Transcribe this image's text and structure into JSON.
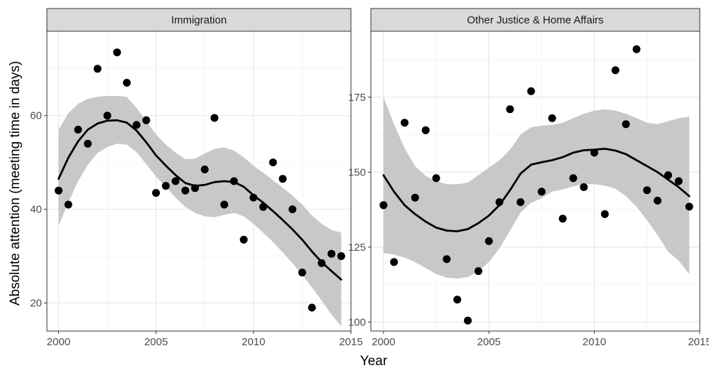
{
  "chart_data": {
    "type": "scatter",
    "facet_strips": true,
    "xlabel": "Year",
    "ylabel": "Absolute attention (meeting time in days)",
    "grid": true,
    "style": {
      "panel_background": "#ffffff",
      "panel_border": "#333333",
      "strip_fill": "#d9d9d9",
      "grid_major": "#e8e8e8",
      "grid_minor": "#f4f4f4",
      "point_color": "#000000",
      "band_color": "#c8c8c8",
      "line_color": "#000000"
    },
    "panels": [
      {
        "strip": "Immigration",
        "xlim": [
          1999.4,
          2015.0
        ],
        "ylim": [
          14.0,
          78.0
        ],
        "x_ticks": [
          2000,
          2005,
          2010,
          2015
        ],
        "x_tick_labels": [
          "2000",
          "2005",
          "2010",
          "2015"
        ],
        "y_ticks": [
          20,
          40,
          60
        ],
        "y_tick_labels": [
          "20",
          "40",
          "60"
        ],
        "points": [
          [
            2000.0,
            44.0
          ],
          [
            2000.5,
            41.0
          ],
          [
            2001.0,
            57.0
          ],
          [
            2001.5,
            54.0
          ],
          [
            2002.0,
            70.0
          ],
          [
            2002.5,
            60.0
          ],
          [
            2003.0,
            73.5
          ],
          [
            2003.5,
            67.0
          ],
          [
            2004.0,
            58.0
          ],
          [
            2004.5,
            59.0
          ],
          [
            2005.0,
            43.5
          ],
          [
            2005.5,
            45.0
          ],
          [
            2006.0,
            46.0
          ],
          [
            2006.5,
            44.0
          ],
          [
            2007.0,
            44.5
          ],
          [
            2007.5,
            48.5
          ],
          [
            2008.0,
            59.5
          ],
          [
            2008.5,
            41.0
          ],
          [
            2009.0,
            46.0
          ],
          [
            2009.5,
            33.5
          ],
          [
            2010.0,
            42.5
          ],
          [
            2010.5,
            40.5
          ],
          [
            2011.0,
            50.0
          ],
          [
            2011.5,
            46.5
          ],
          [
            2012.0,
            40.0
          ],
          [
            2012.5,
            26.5
          ],
          [
            2013.0,
            19.0
          ],
          [
            2013.5,
            28.5
          ],
          [
            2014.0,
            30.5
          ],
          [
            2014.5,
            30.0
          ]
        ],
        "smooth": {
          "x": [
            2000,
            2000.5,
            2001,
            2001.5,
            2002,
            2002.5,
            2003,
            2003.5,
            2004,
            2004.5,
            2005,
            2005.5,
            2006,
            2006.5,
            2007,
            2007.5,
            2008,
            2008.5,
            2009,
            2009.5,
            2010,
            2010.5,
            2011,
            2011.5,
            2012,
            2012.5,
            2013,
            2013.5,
            2014,
            2014.5
          ],
          "y": [
            46.5,
            51.0,
            54.5,
            57.0,
            58.3,
            58.9,
            59.0,
            58.5,
            56.8,
            54.3,
            51.5,
            49.3,
            47.3,
            45.6,
            45.0,
            45.2,
            45.8,
            46.0,
            45.8,
            44.8,
            43.0,
            41.4,
            39.6,
            37.7,
            35.7,
            33.5,
            31.0,
            28.7,
            26.8,
            25.0
          ],
          "lower": [
            36.5,
            41.5,
            46.0,
            49.5,
            52.0,
            53.3,
            54.0,
            53.8,
            52.2,
            49.6,
            47.0,
            44.8,
            42.5,
            40.5,
            39.2,
            38.5,
            38.3,
            38.8,
            39.2,
            38.5,
            36.9,
            35.0,
            33.0,
            30.8,
            28.5,
            26.0,
            23.3,
            20.5,
            17.5,
            15.0
          ],
          "upper": [
            57.0,
            60.5,
            62.5,
            63.6,
            64.0,
            64.2,
            64.2,
            64.0,
            61.6,
            58.8,
            56.0,
            53.8,
            52.1,
            50.7,
            50.8,
            51.9,
            52.9,
            53.2,
            52.5,
            51.1,
            49.3,
            47.8,
            46.2,
            44.6,
            42.9,
            41.0,
            38.7,
            36.9,
            35.6,
            35.0
          ]
        }
      },
      {
        "strip": "Other Justice & Home Affairs",
        "xlim": [
          1999.4,
          2015.0
        ],
        "ylim": [
          97.0,
          197.0
        ],
        "x_ticks": [
          2000,
          2005,
          2010,
          2015
        ],
        "x_tick_labels": [
          "2000",
          "2005",
          "2010",
          "2015"
        ],
        "y_ticks": [
          100,
          125,
          150,
          175
        ],
        "y_tick_labels": [
          "100",
          "125",
          "150",
          "175"
        ],
        "points": [
          [
            2000.0,
            139.0
          ],
          [
            2000.5,
            120.0
          ],
          [
            2001.0,
            166.5
          ],
          [
            2001.5,
            141.5
          ],
          [
            2002.0,
            164.0
          ],
          [
            2002.5,
            148.0
          ],
          [
            2003.0,
            121.0
          ],
          [
            2003.5,
            107.5
          ],
          [
            2004.0,
            100.5
          ],
          [
            2004.5,
            117.0
          ],
          [
            2005.0,
            127.0
          ],
          [
            2005.5,
            140.0
          ],
          [
            2006.0,
            171.0
          ],
          [
            2006.5,
            140.0
          ],
          [
            2007.0,
            177.0
          ],
          [
            2007.5,
            143.5
          ],
          [
            2008.0,
            168.0
          ],
          [
            2008.5,
            134.5
          ],
          [
            2009.0,
            148.0
          ],
          [
            2009.5,
            145.0
          ],
          [
            2010.0,
            156.5
          ],
          [
            2010.5,
            136.0
          ],
          [
            2011.0,
            184.0
          ],
          [
            2011.5,
            166.0
          ],
          [
            2012.0,
            191.0
          ],
          [
            2012.5,
            144.0
          ],
          [
            2013.0,
            140.5
          ],
          [
            2013.5,
            149.0
          ],
          [
            2014.0,
            147.0
          ],
          [
            2014.5,
            138.5
          ]
        ],
        "smooth": {
          "x": [
            2000,
            2000.5,
            2001,
            2001.5,
            2002,
            2002.5,
            2003,
            2003.5,
            2004,
            2004.5,
            2005,
            2005.5,
            2006,
            2006.5,
            2007,
            2007.5,
            2008,
            2008.5,
            2009,
            2009.5,
            2010,
            2010.5,
            2011,
            2011.5,
            2012,
            2012.5,
            2013,
            2013.5,
            2014,
            2014.5
          ],
          "y": [
            149.0,
            143.5,
            139.0,
            136.0,
            133.5,
            131.5,
            130.5,
            130.3,
            131.0,
            133.0,
            135.5,
            139.0,
            144.0,
            149.5,
            152.5,
            153.3,
            154.0,
            155.0,
            156.5,
            157.3,
            157.5,
            157.8,
            157.2,
            156.0,
            154.0,
            152.0,
            150.0,
            147.5,
            145.0,
            142.0
          ],
          "lower": [
            123.0,
            122.5,
            121.5,
            120.0,
            118.0,
            116.0,
            114.8,
            114.5,
            115.0,
            117.0,
            120.0,
            124.5,
            130.5,
            136.5,
            139.8,
            141.3,
            143.5,
            144.2,
            145.3,
            146.0,
            146.0,
            145.5,
            144.5,
            142.0,
            138.5,
            134.0,
            129.0,
            123.5,
            120.5,
            116.0
          ],
          "upper": [
            175.0,
            166.0,
            158.0,
            152.0,
            148.8,
            147.0,
            146.0,
            146.0,
            146.5,
            149.0,
            151.5,
            154.0,
            157.5,
            162.5,
            165.0,
            165.5,
            165.8,
            166.5,
            168.0,
            169.5,
            170.5,
            171.0,
            170.5,
            169.5,
            168.0,
            166.5,
            166.0,
            167.0,
            168.0,
            168.5
          ]
        }
      }
    ]
  }
}
